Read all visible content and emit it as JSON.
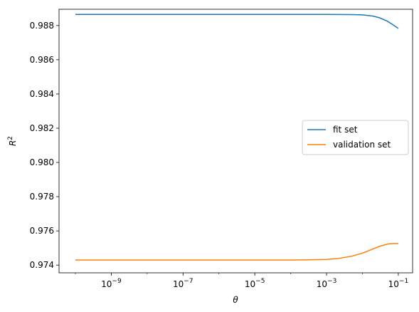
{
  "chart_data": {
    "type": "line",
    "xscale": "log",
    "xlabel": "θ",
    "ylabel": "R²",
    "xlim": [
      3.5e-11,
      0.25
    ],
    "ylim": [
      0.97355,
      0.98895
    ],
    "x_ticks": [
      1e-09,
      1e-07,
      1e-05,
      0.001,
      0.1
    ],
    "x_tick_labels": [
      {
        "base": "10",
        "exp": "−9"
      },
      {
        "base": "10",
        "exp": "−7"
      },
      {
        "base": "10",
        "exp": "−5"
      },
      {
        "base": "10",
        "exp": "−3"
      },
      {
        "base": "10",
        "exp": "−1"
      }
    ],
    "y_ticks": [
      0.974,
      0.976,
      0.978,
      0.98,
      0.982,
      0.984,
      0.986,
      0.988
    ],
    "y_tick_labels": [
      "0.974",
      "0.976",
      "0.978",
      "0.980",
      "0.982",
      "0.984",
      "0.986",
      "0.988"
    ],
    "legend_position": "center-right",
    "series": [
      {
        "name": "fit set",
        "color": "#1f77b4",
        "points": [
          [
            1e-10,
            0.98865
          ],
          [
            1e-08,
            0.98865
          ],
          [
            1e-06,
            0.98865
          ],
          [
            0.0001,
            0.98865
          ],
          [
            0.001,
            0.98865
          ],
          [
            0.005,
            0.98864
          ],
          [
            0.01,
            0.98862
          ],
          [
            0.02,
            0.98855
          ],
          [
            0.03,
            0.98845
          ],
          [
            0.05,
            0.98825
          ],
          [
            0.07,
            0.98805
          ],
          [
            0.1,
            0.98783
          ]
        ]
      },
      {
        "name": "validation set",
        "color": "#ff7f0e",
        "points": [
          [
            1e-10,
            0.9743
          ],
          [
            1e-06,
            0.9743
          ],
          [
            0.0001,
            0.9743
          ],
          [
            0.0003,
            0.97431
          ],
          [
            0.001,
            0.97433
          ],
          [
            0.002,
            0.97438
          ],
          [
            0.005,
            0.97452
          ],
          [
            0.01,
            0.9747
          ],
          [
            0.02,
            0.97495
          ],
          [
            0.03,
            0.9751
          ],
          [
            0.05,
            0.97523
          ],
          [
            0.07,
            0.97526
          ],
          [
            0.1,
            0.97526
          ]
        ]
      }
    ]
  }
}
